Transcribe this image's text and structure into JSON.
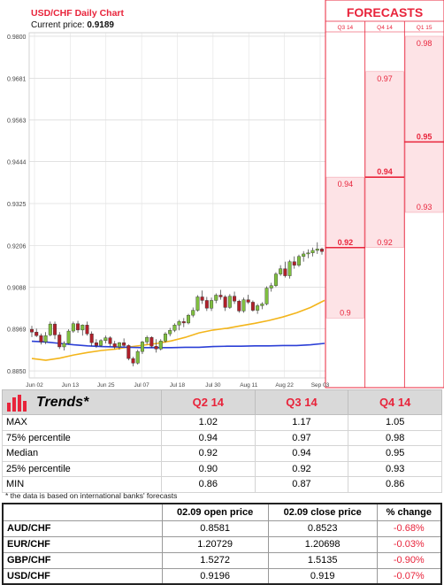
{
  "chart_data": {
    "type": "candlestick",
    "title": "USD/CHF Daily Chart",
    "current_price_label": "Current price:",
    "current_price": "0.9189",
    "y_ticks": [
      "0.9800",
      "0.9681",
      "0.9563",
      "0.9444",
      "0.9325",
      "0.9206",
      "0.9088",
      "0.8969",
      "0.8850"
    ],
    "ylim": [
      0.883,
      0.981
    ],
    "x_ticks": [
      "Jun 02",
      "Jun 13",
      "Jun 25",
      "Jul 07",
      "Jul 18",
      "Jul 30",
      "Aug 11",
      "Aug 22",
      "Sep 03"
    ],
    "candles": [
      [
        0.8968,
        0.8978,
        0.8946,
        0.896
      ],
      [
        0.896,
        0.897,
        0.8946,
        0.895
      ],
      [
        0.895,
        0.8956,
        0.8925,
        0.8932
      ],
      [
        0.8932,
        0.896,
        0.8926,
        0.895
      ],
      [
        0.8952,
        0.899,
        0.8948,
        0.8983
      ],
      [
        0.8983,
        0.899,
        0.894,
        0.8952
      ],
      [
        0.8952,
        0.896,
        0.8912,
        0.8918
      ],
      [
        0.8918,
        0.8934,
        0.8908,
        0.8928
      ],
      [
        0.8928,
        0.8968,
        0.8925,
        0.8963
      ],
      [
        0.8963,
        0.899,
        0.8958,
        0.8984
      ],
      [
        0.8984,
        0.8992,
        0.8958,
        0.8966
      ],
      [
        0.8966,
        0.8982,
        0.895,
        0.898
      ],
      [
        0.898,
        0.899,
        0.895,
        0.8955
      ],
      [
        0.8955,
        0.8962,
        0.892,
        0.893
      ],
      [
        0.893,
        0.894,
        0.8915,
        0.8922
      ],
      [
        0.8922,
        0.894,
        0.8918,
        0.8936
      ],
      [
        0.8936,
        0.895,
        0.8928,
        0.8944
      ],
      [
        0.8944,
        0.8948,
        0.892,
        0.8927
      ],
      [
        0.8927,
        0.8935,
        0.8912,
        0.8918
      ],
      [
        0.8918,
        0.8932,
        0.891,
        0.893
      ],
      [
        0.893,
        0.8942,
        0.8918,
        0.8922
      ],
      [
        0.8922,
        0.8925,
        0.888,
        0.8885
      ],
      [
        0.8885,
        0.889,
        0.8863,
        0.8872
      ],
      [
        0.8872,
        0.891,
        0.8868,
        0.8905
      ],
      [
        0.8905,
        0.8935,
        0.8898,
        0.8932
      ],
      [
        0.8932,
        0.895,
        0.8925,
        0.8945
      ],
      [
        0.8945,
        0.8948,
        0.8915,
        0.892
      ],
      [
        0.892,
        0.894,
        0.8902,
        0.8912
      ],
      [
        0.8912,
        0.894,
        0.8908,
        0.8935
      ],
      [
        0.8935,
        0.896,
        0.893,
        0.8955
      ],
      [
        0.8955,
        0.8972,
        0.8948,
        0.8965
      ],
      [
        0.8965,
        0.8985,
        0.896,
        0.898
      ],
      [
        0.898,
        0.8995,
        0.8965,
        0.899
      ],
      [
        0.899,
        0.9,
        0.8974,
        0.8986
      ],
      [
        0.8986,
        0.9012,
        0.8982,
        0.9008
      ],
      [
        0.9008,
        0.903,
        0.9002,
        0.9022
      ],
      [
        0.9022,
        0.9065,
        0.9018,
        0.906
      ],
      [
        0.906,
        0.9078,
        0.904,
        0.905
      ],
      [
        0.905,
        0.906,
        0.902,
        0.9028
      ],
      [
        0.9028,
        0.9058,
        0.902,
        0.905
      ],
      [
        0.905,
        0.907,
        0.9042,
        0.9065
      ],
      [
        0.9065,
        0.908,
        0.9052,
        0.906
      ],
      [
        0.906,
        0.9065,
        0.902,
        0.903
      ],
      [
        0.903,
        0.9068,
        0.9026,
        0.9062
      ],
      [
        0.9062,
        0.9075,
        0.904,
        0.9048
      ],
      [
        0.9048,
        0.9052,
        0.9015,
        0.902
      ],
      [
        0.902,
        0.9058,
        0.9015,
        0.9052
      ],
      [
        0.9052,
        0.9066,
        0.904,
        0.9045
      ],
      [
        0.9045,
        0.905,
        0.9018,
        0.9022
      ],
      [
        0.9022,
        0.904,
        0.9012,
        0.9035
      ],
      [
        0.9035,
        0.9045,
        0.9025,
        0.904
      ],
      [
        0.904,
        0.909,
        0.9036,
        0.9085
      ],
      [
        0.9085,
        0.91,
        0.9075,
        0.9092
      ],
      [
        0.9092,
        0.913,
        0.9088,
        0.9125
      ],
      [
        0.9125,
        0.915,
        0.912,
        0.914
      ],
      [
        0.914,
        0.916,
        0.9115,
        0.912
      ],
      [
        0.912,
        0.9165,
        0.9112,
        0.916
      ],
      [
        0.916,
        0.9175,
        0.914,
        0.915
      ],
      [
        0.915,
        0.918,
        0.9145,
        0.9175
      ],
      [
        0.9175,
        0.919,
        0.916,
        0.9182
      ],
      [
        0.9182,
        0.9195,
        0.917,
        0.9185
      ],
      [
        0.9185,
        0.92,
        0.9175,
        0.9192
      ],
      [
        0.9192,
        0.9215,
        0.9182,
        0.9196
      ],
      [
        0.9196,
        0.92,
        0.918,
        0.9189
      ]
    ],
    "moving_averages": [
      {
        "name": "",
        "color": "#f3b51b",
        "values": [
          0.8885,
          0.888,
          0.8886,
          0.8895,
          0.8902,
          0.8908,
          0.8912,
          0.8918,
          0.8923,
          0.8928,
          0.8935,
          0.8945,
          0.8958,
          0.8966,
          0.8971,
          0.8978,
          0.8985,
          0.8993,
          0.9003,
          0.9015,
          0.903,
          0.905
        ]
      },
      {
        "name": "",
        "color": "#2b3fd6",
        "values": [
          0.8934,
          0.8932,
          0.8928,
          0.8924,
          0.8921,
          0.8919,
          0.8918,
          0.8917,
          0.8916,
          0.8916,
          0.8916,
          0.8917,
          0.8917,
          0.8919,
          0.892,
          0.892,
          0.8921,
          0.8921,
          0.8922,
          0.8922,
          0.8924,
          0.8928
        ]
      }
    ],
    "forecasts": {
      "title": "FORECASTS",
      "quarters": [
        {
          "label": "Q3 14",
          "max": "0.94",
          "median": "0.92",
          "min": "0.9"
        },
        {
          "label": "Q4 14",
          "max": "0.97",
          "median": "0.94",
          "min": "0.92"
        },
        {
          "label": "Q1 15",
          "max": "0.98",
          "median": "0.95",
          "min": "0.93"
        }
      ]
    }
  },
  "trends": {
    "title": "Trends*",
    "columns": [
      "Q2 14",
      "Q3 14",
      "Q4 14"
    ],
    "rows": [
      {
        "label": "MAX",
        "values": [
          "1.02",
          "1.17",
          "1.05"
        ]
      },
      {
        "label": "75% percentile",
        "values": [
          "0.94",
          "0.97",
          "0.98"
        ]
      },
      {
        "label": "Median",
        "values": [
          "0.92",
          "0.94",
          "0.95"
        ]
      },
      {
        "label": "25% percentile",
        "values": [
          "0.90",
          "0.92",
          "0.93"
        ]
      },
      {
        "label": "MIN",
        "values": [
          "0.86",
          "0.87",
          "0.86"
        ]
      }
    ],
    "note": "* the data is based on international banks' forecasts"
  },
  "prices": {
    "columns": [
      "02.09 open price",
      "02.09 close price",
      "% change"
    ],
    "rows": [
      {
        "pair": "AUD/CHF",
        "open": "0.8581",
        "close": "0.8523",
        "change": "-0.68%"
      },
      {
        "pair": "EUR/CHF",
        "open": "1.20729",
        "close": "1.20698",
        "change": "-0.03%"
      },
      {
        "pair": "GBP/CHF",
        "open": "1.5272",
        "close": "1.5135",
        "change": "-0.90%"
      },
      {
        "pair": "USD/CHF",
        "open": "0.9196",
        "close": "0.919",
        "change": "-0.07%"
      }
    ]
  },
  "colors": {
    "accent": "#e8243b",
    "up": "#7fbf3f",
    "down": "#b0202a",
    "shade": "#fde3e6"
  }
}
